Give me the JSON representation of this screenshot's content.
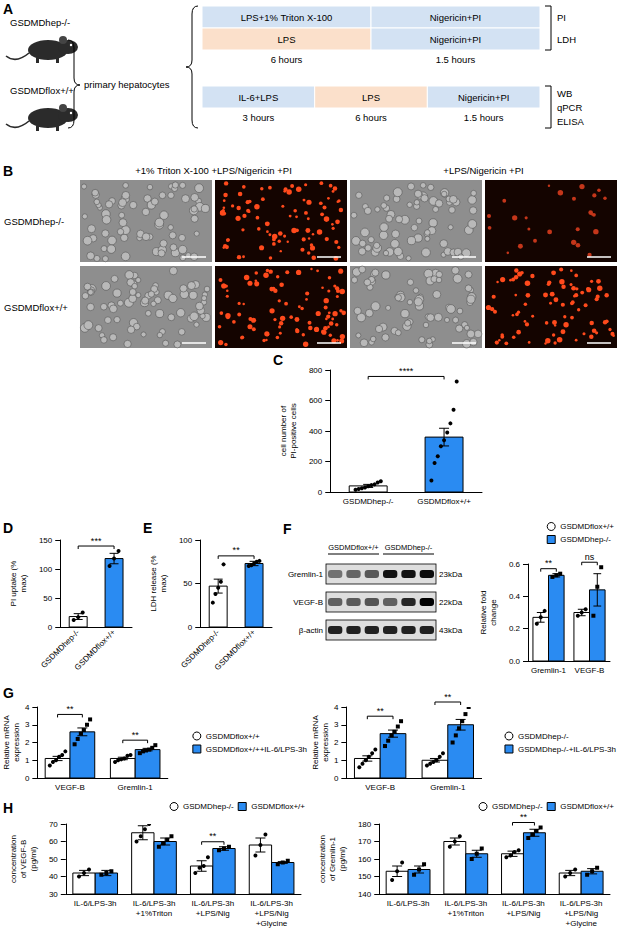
{
  "panel_a": {
    "panel": "A",
    "mice": [
      "GSDMDhep-/-",
      "GSDMDflox+/+"
    ],
    "cells": "primary hepatocytes",
    "protocols": [
      {
        "steps": [
          [
            "LPS+1% Triton X-100",
            "Nigericin+PI"
          ],
          [
            "LPS",
            "Nigericin+PI"
          ]
        ],
        "durations": [
          "6 hours",
          "1.5 hours"
        ],
        "readouts": [
          "PI",
          "LDH"
        ]
      },
      {
        "steps": [
          [
            "IL-6+LPS",
            "LPS",
            "Nigericin+PI"
          ]
        ],
        "durations": [
          "3 hours",
          "6 hours",
          "1.5 hours"
        ],
        "readouts": [
          "WB",
          "qPCR",
          "ELISA"
        ]
      }
    ]
  },
  "panel_b": {
    "panel": "B",
    "columns": [
      "+1% Triton X-100 +LPS/Nigericin +PI",
      "+LPS/Nigericin +PI"
    ],
    "rows": [
      "GSDMDhep-/-",
      "GSDMDflox+/+"
    ]
  },
  "panel_f_blot": {
    "panel": "F",
    "groups": [
      "GSDMDflox+/+",
      "GSDMDhep-/-"
    ],
    "bands": [
      {
        "name": "Gremlin-1",
        "size": "23kDa"
      },
      {
        "name": "VEGF-B",
        "size": "22kDa"
      },
      {
        "name": "β-actin",
        "size": "43kDa"
      }
    ]
  },
  "chart_data": [
    {
      "panel": "C",
      "type": "bar",
      "y_label": "cell number of PI-positive cells",
      "categories": [
        "GSDMDhep-/-",
        "GSDMDflox+/+"
      ],
      "values": [
        40,
        360
      ],
      "errors": [
        10,
        58
      ],
      "colors": [
        "#ffffff",
        "#2a8bf2"
      ],
      "points": [
        [
          15,
          20,
          25,
          30,
          38,
          45,
          50,
          62,
          70
        ],
        [
          75,
          190,
          235,
          300,
          340,
          390,
          450,
          540,
          725
        ]
      ],
      "marker": "circle",
      "ylim": [
        0,
        800
      ],
      "yticks": [
        0,
        200,
        400,
        600,
        800
      ],
      "grid": false,
      "annotations": [
        {
          "text": "****",
          "between": [
            "GSDMDhep-/-",
            "GSDMDflox+/+"
          ]
        }
      ]
    },
    {
      "panel": "D",
      "type": "bar",
      "y_label": "PI uptake (% max)",
      "categories": [
        "GSDMDhep-/-",
        "GSDMDflox+/+"
      ],
      "values": [
        18,
        118
      ],
      "errors": [
        5,
        9
      ],
      "colors": [
        "#ffffff",
        "#2a8bf2"
      ],
      "points": [
        [
          12,
          17,
          25
        ],
        [
          105,
          118,
          131
        ]
      ],
      "marker": "circle",
      "ylim": [
        0,
        150
      ],
      "yticks": [
        0,
        50,
        100,
        150
      ],
      "grid": false,
      "annotations": [
        {
          "text": "***",
          "between": [
            "GSDMDhep-/-",
            "GSDMDflox+/+"
          ]
        }
      ]
    },
    {
      "panel": "E",
      "type": "bar",
      "y_label": "LDH release (% max)",
      "categories": [
        "GSDMDhep-/-",
        "GSDMDflox+/+"
      ],
      "values": [
        47,
        73
      ],
      "errors": [
        8,
        2.5
      ],
      "colors": [
        "#ffffff",
        "#2a8bf2"
      ],
      "points": [
        [
          28,
          38,
          45,
          52,
          72
        ],
        [
          70,
          71,
          73,
          75,
          76
        ]
      ],
      "marker": "circle",
      "ylim": [
        0,
        100
      ],
      "yticks": [
        0,
        50,
        100
      ],
      "grid": false,
      "annotations": [
        {
          "text": "**",
          "between": [
            "GSDMDhep-/-",
            "GSDMDflox+/+"
          ]
        }
      ]
    },
    {
      "type": "bar",
      "y_label": "Relative fold change",
      "categories": [
        "Gremlin-1",
        "VEGF-B"
      ],
      "series": [
        {
          "name": "GSDMDflox+/+",
          "color": "#ffffff",
          "marker": "circle",
          "values": [
            0.27,
            0.3
          ],
          "errors": [
            0.03,
            0.02
          ],
          "points": [
            [
              0.23,
              0.27,
              0.31
            ],
            [
              0.28,
              0.3,
              0.32
            ]
          ]
        },
        {
          "name": "GSDMDhep-/-",
          "color": "#2a8bf2",
          "marker": "square",
          "values": [
            0.53,
            0.44
          ],
          "errors": [
            0.01,
            0.1
          ],
          "points": [
            [
              0.52,
              0.53,
              0.54
            ],
            [
              0.28,
              0.46,
              0.58
            ]
          ]
        }
      ],
      "ylim": [
        0,
        0.6
      ],
      "yticks": [
        {
          "value": 0,
          "label": "0.0"
        },
        0.2,
        0.4,
        0.6
      ],
      "grid": false,
      "legend": "top",
      "annotations": [
        {
          "text": "**",
          "category": "Gremlin-1"
        },
        {
          "text": "ns",
          "category": "VEGF-B"
        }
      ]
    },
    {
      "panel": "G",
      "type": "bar",
      "y_label": "Relative mRNA expression",
      "categories": [
        "VEGF-B",
        "Gremlin-1"
      ],
      "series": [
        {
          "name": "GSDMDflox+/+",
          "color": "#ffffff",
          "marker": "circle",
          "values": [
            1.1,
            1.1
          ],
          "errors": [
            0.12,
            0.07
          ],
          "points": [
            [
              0.7,
              0.9,
              1.0,
              1.2,
              1.3,
              1.5
            ],
            [
              0.9,
              1.0,
              1.05,
              1.1,
              1.25,
              1.3
            ]
          ]
        },
        {
          "name": "GSDMDflox+/++IL-6/LPS-3h",
          "color": "#2a8bf2",
          "marker": "square",
          "values": [
            2.6,
            1.6
          ],
          "errors": [
            0.22,
            0.07
          ],
          "points": [
            [
              1.9,
              2.2,
              2.5,
              2.7,
              3.0,
              3.3
            ],
            [
              1.4,
              1.5,
              1.55,
              1.6,
              1.7,
              1.85
            ]
          ]
        }
      ],
      "ylim": [
        0,
        4
      ],
      "yticks": [
        0,
        1,
        2,
        3,
        4
      ],
      "grid": false,
      "legend": "right",
      "annotations": [
        {
          "text": "**",
          "category": "VEGF-B"
        },
        {
          "text": "**",
          "category": "Gremlin-1"
        }
      ]
    },
    {
      "type": "bar",
      "y_label": "Relative mRNA expression",
      "categories": [
        "VEGF-B",
        "Gremlin-1"
      ],
      "series": [
        {
          "name": "GSDMDhep-/-",
          "color": "#ffffff",
          "marker": "circle",
          "values": [
            1.1,
            1.0
          ],
          "errors": [
            0.15,
            0.1
          ],
          "points": [
            [
              0.6,
              0.8,
              1.0,
              1.2,
              1.4,
              1.6
            ],
            [
              0.7,
              0.8,
              0.9,
              1.0,
              1.2,
              1.4
            ]
          ]
        },
        {
          "name": "GSDMDhep-/-+IL-6/LPS-3h",
          "color": "#2a8bf2",
          "marker": "square",
          "values": [
            2.5,
            3.0
          ],
          "errors": [
            0.2,
            0.3
          ],
          "points": [
            [
              1.8,
              2.1,
              2.4,
              2.6,
              2.9,
              3.2
            ],
            [
              2.0,
              2.4,
              2.8,
              3.2,
              3.6,
              4.0
            ]
          ]
        }
      ],
      "ylim": [
        0,
        4
      ],
      "yticks": [
        0,
        1,
        2,
        3,
        4
      ],
      "grid": false,
      "legend": "right",
      "annotations": [
        {
          "text": "**",
          "category": "VEGF-B"
        },
        {
          "text": "**",
          "category": "Gremlin-1"
        }
      ]
    },
    {
      "panel": "H",
      "type": "bar",
      "y_label": "concentration of VEGF-B (pg/ml)",
      "categories": [
        "IL-6/LPS-3h",
        "IL-6/LPS-3h+1%Triton",
        "IL-6/LPS-3h+LPS/Nig",
        "IL-6/LPS-3h+LPS/Nig+Glycine"
      ],
      "series": [
        {
          "name": "GSDMDhep-/-",
          "color": "#ffffff",
          "marker": "circle",
          "values": [
            42,
            65,
            46,
            58
          ],
          "errors": [
            1.5,
            4,
            3,
            4
          ],
          "points": [
            [
              40,
              42,
              44
            ],
            [
              60,
              63,
              67,
              70
            ],
            [
              42,
              45,
              46,
              51
            ],
            [
              52,
              58,
              64
            ]
          ]
        },
        {
          "name": "GSDMDflox+/+",
          "color": "#2a8bf2",
          "marker": "square",
          "values": [
            42,
            60,
            56,
            48
          ],
          "errors": [
            1.5,
            2,
            1,
            0.5
          ],
          "points": [
            [
              41,
              42,
              43
            ],
            [
              57,
              59,
              61,
              63
            ],
            [
              55,
              56,
              57
            ],
            [
              47,
              48,
              49
            ]
          ]
        }
      ],
      "ylim": [
        30,
        70
      ],
      "yticks": [
        30,
        40,
        50,
        60,
        70
      ],
      "grid": false,
      "legend": "top",
      "annotations": [
        {
          "text": "**",
          "category": "IL-6/LPS-3h+LPS/Nig"
        }
      ]
    },
    {
      "type": "bar",
      "y_label": "concentration of Gremlin-1 (pg/ml)",
      "categories": [
        "IL-6/LPS-3h",
        "IL-6/LPS-3h+1%Triton",
        "IL-6/LPS-3h+LPS/Nig",
        "IL-6/LPS-3h+LPS/Nig+Glycine"
      ],
      "series": [
        {
          "name": "GSDMDhep-/-",
          "color": "#ffffff",
          "marker": "circle",
          "values": [
            153,
            170,
            163,
            152
          ],
          "errors": [
            3,
            2,
            1.5,
            1.5
          ],
          "points": [
            [
              148,
              153,
              158
            ],
            [
              167,
              170,
              173
            ],
            [
              161,
              162,
              164,
              165
            ],
            [
              150,
              152,
              154
            ]
          ]
        },
        {
          "name": "GSDMDflox+/+",
          "color": "#2a8bf2",
          "marker": "square",
          "values": [
            154,
            163,
            175,
            153
          ],
          "errors": [
            2,
            2,
            2,
            1.5
          ],
          "points": [
            [
              151,
              154,
              157
            ],
            [
              160,
              163,
              166
            ],
            [
              172,
              174,
              176,
              178
            ],
            [
              151,
              153,
              155
            ]
          ]
        }
      ],
      "ylim": [
        140,
        180
      ],
      "yticks": [
        140,
        150,
        160,
        170,
        180
      ],
      "grid": false,
      "legend": "top",
      "annotations": [
        {
          "text": "**",
          "category": "IL-6/LPS-3h+LPS/Nig"
        }
      ]
    }
  ]
}
